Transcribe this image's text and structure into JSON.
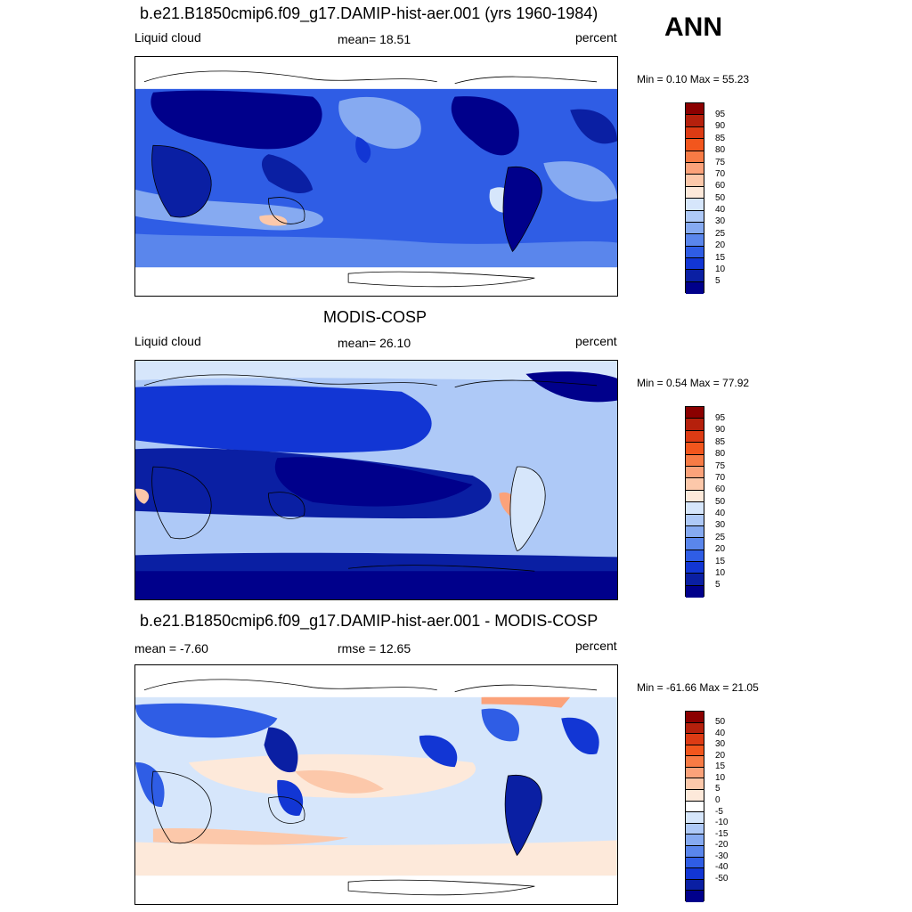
{
  "season": "ANN",
  "panels": [
    {
      "title": "b.e21.B1850cmip6.f09_g17.DAMIP-hist-aer.001 (yrs 1960-1984)",
      "left_label": "Liquid cloud",
      "center_label": "mean=  18.51",
      "right_label": "percent",
      "minmax": "Min =   0.10 Max =  55.23",
      "colorbar_ticks": [
        "95",
        "90",
        "85",
        "80",
        "75",
        "70",
        "60",
        "50",
        "40",
        "30",
        "25",
        "20",
        "15",
        "10",
        "5"
      ]
    },
    {
      "title": "MODIS-COSP",
      "left_label": "Liquid cloud",
      "center_label": "mean=  26.10",
      "right_label": "percent",
      "minmax": "Min =   0.54 Max =  77.92",
      "colorbar_ticks": [
        "95",
        "90",
        "85",
        "80",
        "75",
        "70",
        "60",
        "50",
        "40",
        "30",
        "25",
        "20",
        "15",
        "10",
        "5"
      ]
    },
    {
      "title": "b.e21.B1850cmip6.f09_g17.DAMIP-hist-aer.001 - MODIS-COSP",
      "left_label": "mean =  -7.60",
      "center_label": "rmse =  12.65",
      "right_label": "percent",
      "minmax": "Min = -61.66 Max =  21.05",
      "colorbar_ticks": [
        "50",
        "40",
        "30",
        "20",
        "15",
        "10",
        "5",
        "0",
        "-5",
        "-10",
        "-15",
        "-20",
        "-30",
        "-40",
        "-50"
      ]
    }
  ],
  "colors": {
    "abs_scale": [
      "#8b0000",
      "#b5200c",
      "#dd3b14",
      "#f2561d",
      "#f77b45",
      "#fba27a",
      "#fcc8aa",
      "#fde9da",
      "#d6e6fb",
      "#aec9f7",
      "#86aaf1",
      "#5a86ec",
      "#2f5de5",
      "#1236d4",
      "#0a1fa3",
      "#00008b"
    ],
    "diff_scale": [
      "#8b0000",
      "#b5200c",
      "#dd3b14",
      "#f2561d",
      "#f77b45",
      "#fba27a",
      "#fcc8aa",
      "#fde9da",
      "#ffffff",
      "#d6e6fb",
      "#aec9f7",
      "#86aaf1",
      "#5a86ec",
      "#2f5de5",
      "#1236d4",
      "#0a1fa3",
      "#00008b"
    ]
  }
}
